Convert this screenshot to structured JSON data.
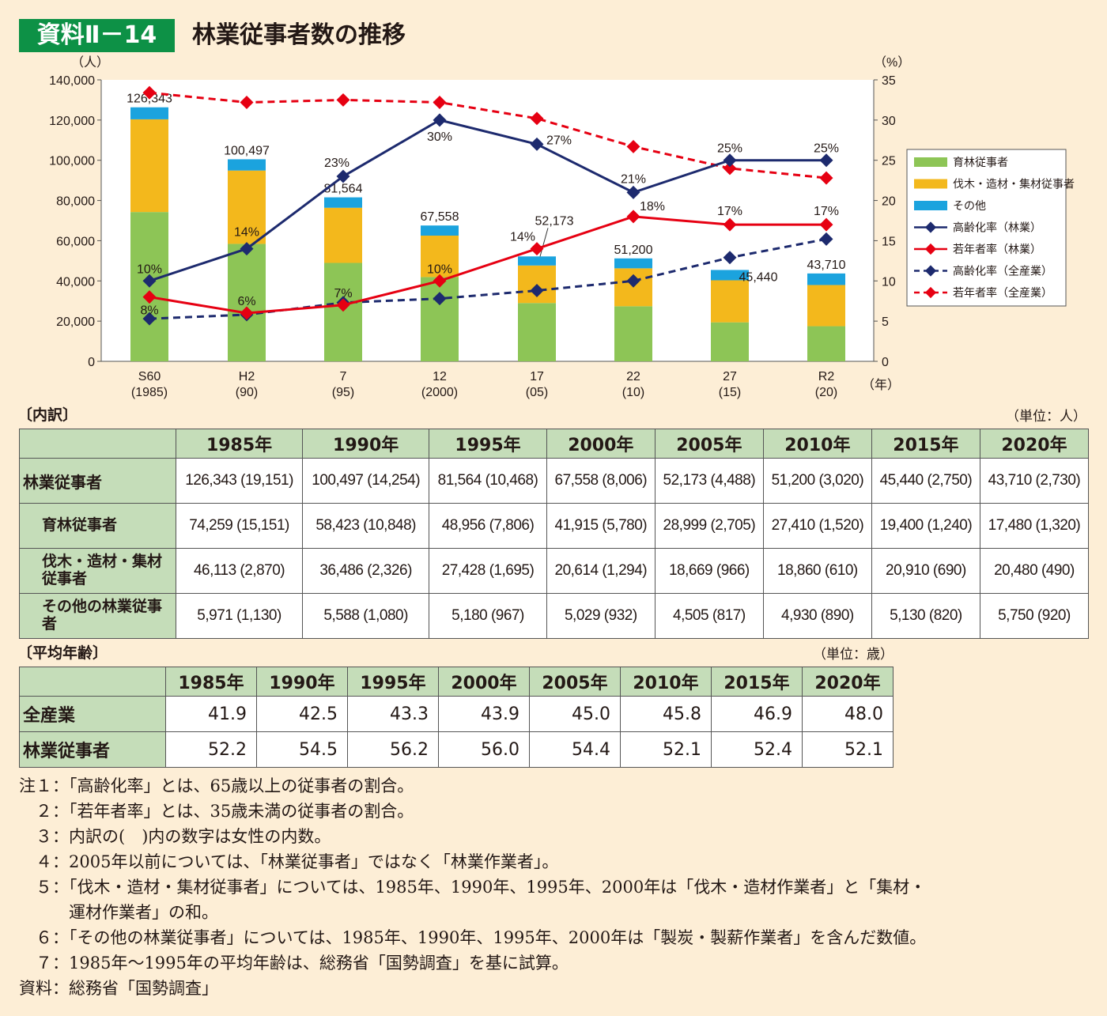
{
  "header": {
    "badge": "資料Ⅱ－14",
    "title": "林業従事者数の推移"
  },
  "chart_data": {
    "type": "bar",
    "title": "林業従事者数の推移",
    "ylabel": "（人）",
    "y2label": "（%）",
    "xunit": "（年）",
    "ylim": [
      0,
      140000
    ],
    "y2lim": [
      0,
      35
    ],
    "yticks": [
      "0",
      "20,000",
      "40,000",
      "60,000",
      "80,000",
      "100,000",
      "120,000",
      "140,000"
    ],
    "y2ticks": [
      "0",
      "5",
      "10",
      "15",
      "20",
      "25",
      "30",
      "35"
    ],
    "categories": [
      "S60",
      "H2",
      "7",
      "12",
      "17",
      "22",
      "27",
      "R2"
    ],
    "categories_sub": [
      "(1985)",
      "(90)",
      "(95)",
      "(2000)",
      "(05)",
      "(10)",
      "(15)",
      "(20)"
    ],
    "totals": [
      126343,
      100497,
      81564,
      67558,
      52173,
      51200,
      45440,
      43710
    ],
    "total_labels": [
      "126,343",
      "100,497",
      "81,564",
      "67,558",
      "52,173",
      "51,200",
      "45,440",
      "43,710"
    ],
    "series": [
      {
        "name": "育林従事者",
        "kind": "bar",
        "color": "#8dc556",
        "values": [
          74259,
          58423,
          48956,
          41915,
          28999,
          27410,
          19400,
          17480
        ]
      },
      {
        "name": "伐木・造材・集材従事者",
        "kind": "bar",
        "color": "#f3b81c",
        "values": [
          46113,
          36486,
          27428,
          20614,
          18669,
          18860,
          20910,
          20480
        ]
      },
      {
        "name": "その他",
        "kind": "bar",
        "color": "#1ba3de",
        "values": [
          5971,
          5588,
          5180,
          5029,
          4505,
          4930,
          5130,
          5750
        ]
      },
      {
        "name": "高齢化率（林業）",
        "kind": "line",
        "color": "#1d2a6e",
        "dashed": false,
        "values": [
          10,
          14,
          23,
          30,
          27,
          21,
          25,
          25
        ],
        "labels": [
          "10%",
          "14%",
          "23%",
          "30%",
          "27%",
          "21%",
          "25%",
          "25%"
        ]
      },
      {
        "name": "若年者率（林業）",
        "kind": "line",
        "color": "#e60012",
        "dashed": false,
        "values": [
          8,
          6,
          7,
          10,
          14,
          18,
          17,
          17
        ],
        "labels": [
          "8%",
          "6%",
          "7%",
          "10%",
          "14%",
          "18%",
          "17%",
          "17%"
        ]
      },
      {
        "name": "高齢化率（全産業）",
        "kind": "line",
        "color": "#1d2a6e",
        "dashed": true,
        "values": [
          5.3,
          5.8,
          7.3,
          7.8,
          8.8,
          10.0,
          12.9,
          15.2
        ]
      },
      {
        "name": "若年者率（全産業）",
        "kind": "line",
        "color": "#e60012",
        "dashed": true,
        "values": [
          33.4,
          32.2,
          32.5,
          32.2,
          30.2,
          26.7,
          24.0,
          22.8
        ]
      }
    ],
    "legend_position": "right"
  },
  "breakdown": {
    "label": "〔内訳〕",
    "unit": "（単位：人）",
    "headers": [
      "1985年",
      "1990年",
      "1995年",
      "2000年",
      "2005年",
      "2010年",
      "2015年",
      "2020年"
    ],
    "rows": [
      {
        "label": "林業従事者",
        "cells": [
          "126,343 (19,151)",
          "100,497 (14,254)",
          "81,564 (10,468)",
          "67,558 (8,006)",
          "52,173 (4,488)",
          "51,200 (3,020)",
          "45,440 (2,750)",
          "43,710 (2,730)"
        ]
      },
      {
        "label": "育林従事者",
        "cells": [
          "74,259 (15,151)",
          "58,423 (10,848)",
          "48,956 (7,806)",
          "41,915 (5,780)",
          "28,999 (2,705)",
          "27,410 (1,520)",
          "19,400 (1,240)",
          "17,480 (1,320)"
        ]
      },
      {
        "label": "伐木・造材・集材従事者",
        "cells": [
          "46,113 (2,870)",
          "36,486 (2,326)",
          "27,428 (1,695)",
          "20,614 (1,294)",
          "18,669 (966)",
          "18,860 (610)",
          "20,910 (690)",
          "20,480 (490)"
        ]
      },
      {
        "label": "その他の林業従事者",
        "cells": [
          "5,971 (1,130)",
          "5,588 (1,080)",
          "5,180 (967)",
          "5,029 (932)",
          "4,505 (817)",
          "4,930 (890)",
          "5,130 (820)",
          "5,750 (920)"
        ]
      }
    ]
  },
  "age": {
    "label": "〔平均年齢〕",
    "unit": "（単位：歳）",
    "headers": [
      "1985年",
      "1990年",
      "1995年",
      "2000年",
      "2005年",
      "2010年",
      "2015年",
      "2020年"
    ],
    "rows": [
      {
        "label": "全産業",
        "cells": [
          "41.9",
          "42.5",
          "43.3",
          "43.9",
          "45.0",
          "45.8",
          "46.9",
          "48.0"
        ]
      },
      {
        "label": "林業従事者",
        "cells": [
          "52.2",
          "54.5",
          "56.2",
          "56.0",
          "54.4",
          "52.1",
          "52.4",
          "52.1"
        ]
      }
    ]
  },
  "notes": [
    "注１：「高齢化率」とは、65歳以上の従事者の割合。",
    "　２：「若年者率」とは、35歳未満の従事者の割合。",
    "　３：内訳の(　)内の数字は女性の内数。",
    "　４：2005年以前については、「林業従事者」ではなく「林業作業者」。",
    "　５：「伐木・造材・集材従事者」については、1985年、1990年、1995年、2000年は「伐木・造材作業者」と「集材・",
    "　　　運材作業者」の和。",
    "　６：「その他の林業従事者」については、1985年、1990年、1995年、2000年は「製炭・製薪作業者」を含んだ数値。",
    "　７：1985年～1995年の平均年齢は、総務省「国勢調査」を基に試算。",
    "資料：総務省「国勢調査」"
  ]
}
